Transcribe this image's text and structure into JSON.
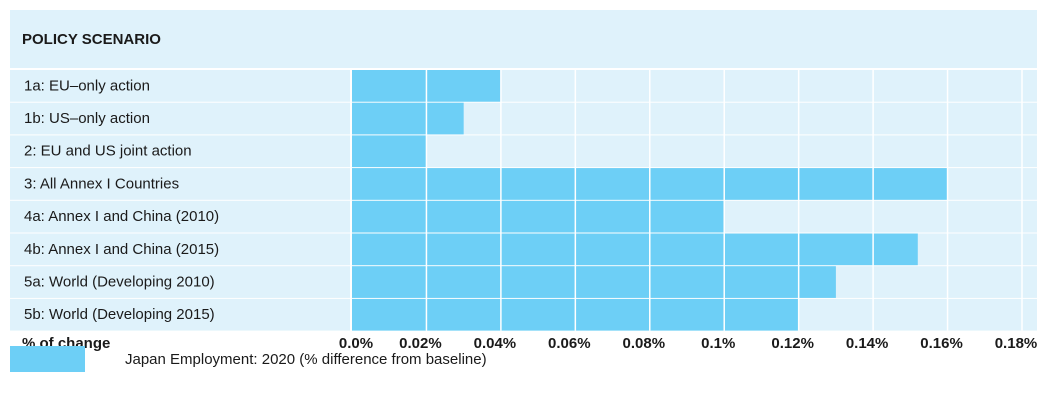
{
  "chart_data": {
    "type": "bar",
    "orientation": "horizontal",
    "title": "POLICY SCENARIO",
    "x_label": "% of change",
    "categories": [
      "1a: EU–only action",
      "1b: US–only action",
      "2: EU and US joint action",
      "3: All Annex I Countries",
      "4a: Annex I and China (2010)",
      "4b: Annex I and China (2015)",
      "5a: World (Developing 2010)",
      "5b: World (Developing 2015)"
    ],
    "series": [
      {
        "name": "Japan Employment: 2020 (% difference from baseline)",
        "color": "#6dcff6",
        "values": [
          0.04,
          0.03,
          0.02,
          0.16,
          0.1,
          0.152,
          0.13,
          0.12
        ]
      }
    ],
    "xlim": [
      0,
      0.18
    ],
    "xticks": [
      {
        "value": 0,
        "label": "0.0%"
      },
      {
        "value": 0.02,
        "label": "0.02%"
      },
      {
        "value": 0.04,
        "label": "0.04%"
      },
      {
        "value": 0.06,
        "label": "0.06%"
      },
      {
        "value": 0.08,
        "label": "0.08%"
      },
      {
        "value": 0.1,
        "label": "0.1%"
      },
      {
        "value": 0.12,
        "label": "0.12%"
      },
      {
        "value": 0.14,
        "label": "0.14%"
      },
      {
        "value": 0.16,
        "label": "0.16%"
      },
      {
        "value": 0.18,
        "label": "0.18%"
      }
    ],
    "grid": true
  }
}
